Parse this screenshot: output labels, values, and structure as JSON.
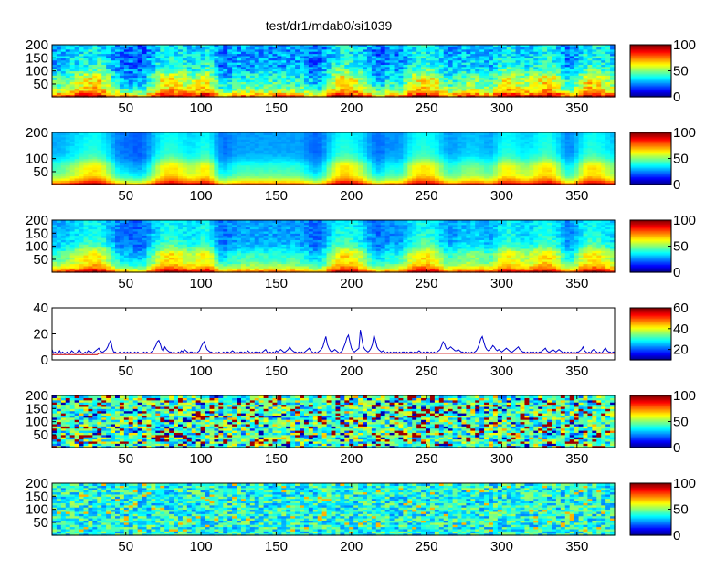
{
  "title": "test/dr1/mdab0/si1039",
  "chart_data": [
    {
      "type": "heatmap",
      "xlim": [
        1,
        375
      ],
      "ylim": [
        1,
        200
      ],
      "xticks": [
        50,
        100,
        150,
        200,
        250,
        300,
        350
      ],
      "yticks": [
        50,
        100,
        150,
        200
      ],
      "yticklabels": [
        "50",
        "100",
        "150",
        "200"
      ],
      "colorbar": {
        "clim": [
          0,
          100
        ],
        "ticks": [
          0,
          50,
          100
        ]
      },
      "colormap": "jet",
      "pattern": "spectrogram-fine"
    },
    {
      "type": "heatmap",
      "xlim": [
        1,
        375
      ],
      "ylim": [
        1,
        200
      ],
      "xticks": [
        50,
        100,
        150,
        200,
        250,
        300,
        350
      ],
      "yticks": [
        50,
        100,
        200
      ],
      "yticklabels": [
        "50",
        "100",
        "200"
      ],
      "colorbar": {
        "clim": [
          0,
          100
        ],
        "ticks": [
          0,
          50,
          100
        ]
      },
      "colormap": "jet",
      "pattern": "spectrogram-smooth"
    },
    {
      "type": "heatmap",
      "xlim": [
        1,
        375
      ],
      "ylim": [
        1,
        200
      ],
      "xticks": [
        50,
        100,
        150,
        200,
        250,
        300,
        350
      ],
      "yticks": [
        50,
        100,
        150,
        200
      ],
      "yticklabels": [
        "50",
        "100",
        "150",
        "200"
      ],
      "colorbar": {
        "clim": [
          0,
          100
        ],
        "ticks": [
          0,
          50,
          100
        ]
      },
      "colormap": "jet",
      "pattern": "spectrogram-medium"
    },
    {
      "type": "line",
      "xlim": [
        1,
        375
      ],
      "ylim": [
        0,
        40
      ],
      "xticks": [
        50,
        100,
        150,
        200,
        250,
        300,
        350
      ],
      "yticks": [
        0,
        20,
        40
      ],
      "yticklabels": [
        "0",
        "20",
        "40"
      ],
      "colorbar": {
        "clim": [
          10,
          60
        ],
        "ticks": [
          20,
          40,
          60
        ]
      },
      "colormap": "jet",
      "series": [
        {
          "color": "#0000cc",
          "values": [
            8,
            5,
            6,
            5,
            5,
            7,
            5,
            6,
            5,
            5,
            6,
            5,
            5,
            7,
            6,
            5,
            5,
            6,
            8,
            6,
            5,
            5,
            6,
            5,
            7,
            6,
            6,
            5,
            6,
            7,
            8,
            9,
            7,
            6,
            6,
            7,
            8,
            10,
            13,
            15,
            9,
            6,
            6,
            5,
            5,
            6,
            5,
            5,
            6,
            5,
            6,
            5,
            6,
            5,
            5,
            6,
            5,
            6,
            5,
            5,
            5,
            6,
            5,
            6,
            5,
            5,
            6,
            7,
            9,
            11,
            14,
            15,
            12,
            8,
            7,
            10,
            8,
            7,
            6,
            6,
            5,
            6,
            5,
            5,
            6,
            5,
            7,
            6,
            8,
            7,
            6,
            5,
            6,
            6,
            5,
            6,
            5,
            6,
            7,
            10,
            12,
            14,
            11,
            8,
            7,
            6,
            6,
            5,
            5,
            6,
            5,
            6,
            5,
            5,
            6,
            5,
            6,
            6,
            5,
            6,
            7,
            6,
            5,
            6,
            5,
            6,
            6,
            5,
            6,
            5,
            7,
            6,
            5,
            6,
            5,
            6,
            6,
            5,
            6,
            5,
            6,
            7,
            8,
            6,
            5,
            6,
            5,
            6,
            5,
            7,
            6,
            7,
            8,
            7,
            6,
            6,
            7,
            8,
            10,
            8,
            7,
            6,
            6,
            5,
            6,
            5,
            6,
            5,
            6,
            7,
            8,
            9,
            7,
            6,
            5,
            6,
            5,
            6,
            7,
            8,
            10,
            14,
            18,
            12,
            9,
            7,
            6,
            7,
            8,
            7,
            6,
            5,
            6,
            7,
            10,
            13,
            17,
            19,
            14,
            9,
            7,
            6,
            7,
            8,
            9,
            23,
            16,
            10,
            8,
            7,
            6,
            7,
            9,
            12,
            19,
            15,
            10,
            8,
            7,
            6,
            7,
            6,
            5,
            6,
            5,
            6,
            5,
            6,
            5,
            6,
            5,
            6,
            5,
            6,
            6,
            5,
            6,
            5,
            6,
            6,
            5,
            6,
            5,
            6,
            7,
            6,
            5,
            6,
            5,
            6,
            6,
            5,
            6,
            5,
            6,
            5,
            6,
            7,
            8,
            11,
            14,
            12,
            9,
            8,
            9,
            10,
            9,
            8,
            7,
            7,
            8,
            7,
            6,
            6,
            5,
            6,
            5,
            6,
            5,
            6,
            5,
            6,
            7,
            9,
            12,
            16,
            18,
            14,
            10,
            8,
            7,
            8,
            9,
            11,
            10,
            8,
            7,
            8,
            7,
            6,
            7,
            8,
            9,
            8,
            7,
            6,
            6,
            7,
            8,
            9,
            10,
            8,
            7,
            6,
            6,
            5,
            6,
            5,
            6,
            5,
            6,
            5,
            6,
            5,
            6,
            6,
            7,
            8,
            9,
            7,
            6,
            6,
            7,
            8,
            7,
            6,
            7,
            8,
            7,
            6,
            5,
            6,
            5,
            6,
            5,
            6,
            5,
            6,
            5,
            6,
            6,
            7,
            8,
            10,
            7,
            6,
            5,
            6,
            5,
            7,
            8,
            7,
            6,
            5,
            6,
            5,
            6,
            8,
            9,
            7,
            6,
            6,
            5,
            6,
            6
          ]
        },
        {
          "color": "#cc0000",
          "values": [
            4,
            4,
            4,
            4,
            4,
            4,
            4,
            4,
            4,
            4,
            4,
            4,
            4,
            4,
            4,
            4,
            4,
            4,
            4,
            4,
            4,
            4,
            4,
            4,
            4,
            4,
            4,
            4,
            4,
            4,
            4,
            5,
            5,
            5,
            5,
            5,
            5,
            5,
            5,
            5,
            5,
            5,
            5,
            5,
            5,
            5,
            5,
            5,
            5,
            5,
            5,
            5,
            5,
            5,
            5,
            5,
            5,
            5,
            5,
            5,
            5,
            5,
            5,
            5,
            5,
            5,
            5,
            5,
            5,
            5,
            5,
            5,
            5,
            5,
            5,
            5,
            5,
            5,
            5,
            5,
            5,
            5,
            5,
            5,
            5,
            5,
            5,
            5,
            5,
            5,
            5,
            5,
            5,
            5,
            5,
            5,
            5,
            5,
            5,
            5,
            5,
            5,
            5,
            5,
            5,
            5,
            5,
            5,
            5,
            5,
            5,
            5,
            5,
            5,
            5,
            5,
            5,
            5,
            5,
            5,
            5,
            5,
            5,
            5,
            5,
            5,
            5,
            5,
            5,
            5,
            5,
            5,
            5,
            5,
            5,
            5,
            5,
            5,
            5,
            5,
            5,
            5,
            5,
            5,
            5,
            5,
            5,
            5,
            5,
            5,
            5,
            5,
            5,
            5,
            5,
            5,
            5,
            5,
            5,
            5,
            5,
            5,
            5,
            5,
            5,
            5,
            5,
            5,
            5,
            5,
            5,
            5,
            5,
            5,
            5,
            5,
            5,
            5,
            5,
            5,
            5,
            5,
            5,
            5,
            5,
            5,
            5,
            5,
            5,
            5,
            5,
            5,
            5,
            5,
            5,
            5,
            5,
            5,
            5,
            5,
            5,
            5,
            5,
            5,
            5,
            5,
            5,
            5,
            5,
            5,
            5,
            5,
            5,
            5,
            5,
            5,
            5,
            5,
            5,
            5,
            5,
            5,
            5,
            5,
            5,
            5,
            5,
            5,
            5,
            5,
            5,
            5,
            5,
            5,
            5,
            5,
            5,
            5,
            5,
            5,
            5,
            5,
            5,
            5,
            5,
            5,
            5,
            5,
            5,
            5,
            5,
            5,
            5,
            5,
            5,
            5,
            5,
            5,
            5,
            5,
            5,
            5,
            5,
            5,
            5,
            5,
            5,
            5,
            5,
            5,
            5,
            5,
            5,
            5,
            5,
            5,
            5,
            5,
            5,
            5,
            5,
            5,
            5,
            5,
            5,
            5,
            5,
            5,
            5,
            5,
            5,
            5,
            5,
            5,
            5,
            5,
            5,
            5,
            5,
            5,
            5,
            5,
            5,
            5,
            5,
            5,
            5,
            5,
            5,
            5,
            5,
            5,
            5,
            5,
            5,
            5,
            5,
            5,
            5,
            5,
            5,
            5,
            5,
            5,
            5,
            5,
            5,
            5,
            5,
            5,
            5,
            5,
            5,
            5,
            5,
            5,
            5,
            5,
            5,
            5,
            5,
            5,
            5,
            5,
            5,
            5,
            5,
            5,
            5,
            5,
            5,
            5,
            5,
            5,
            5,
            5,
            5,
            5,
            5,
            5,
            5,
            5,
            5,
            5,
            5,
            5,
            5,
            5,
            5,
            5,
            5,
            5,
            5,
            5,
            5
          ]
        }
      ]
    },
    {
      "type": "heatmap",
      "xlim": [
        1,
        375
      ],
      "ylim": [
        1,
        200
      ],
      "xticks": [
        50,
        100,
        150,
        200,
        250,
        300,
        350
      ],
      "yticks": [
        50,
        100,
        150,
        200
      ],
      "yticklabels": [
        "50",
        "100",
        "150",
        "200"
      ],
      "colorbar": {
        "clim": [
          0,
          100
        ],
        "ticks": [
          0,
          50,
          100
        ]
      },
      "colormap": "jet",
      "pattern": "noise-strong"
    },
    {
      "type": "heatmap",
      "xlim": [
        1,
        375
      ],
      "ylim": [
        1,
        200
      ],
      "xticks": [
        50,
        100,
        150,
        200,
        250,
        300,
        350
      ],
      "yticks": [
        50,
        100,
        150,
        200
      ],
      "yticklabels": [
        "50",
        "100",
        "150",
        "200"
      ],
      "colorbar": {
        "clim": [
          0,
          100
        ],
        "ticks": [
          0,
          50,
          100
        ]
      },
      "colormap": "jet",
      "pattern": "noise-weak"
    }
  ]
}
